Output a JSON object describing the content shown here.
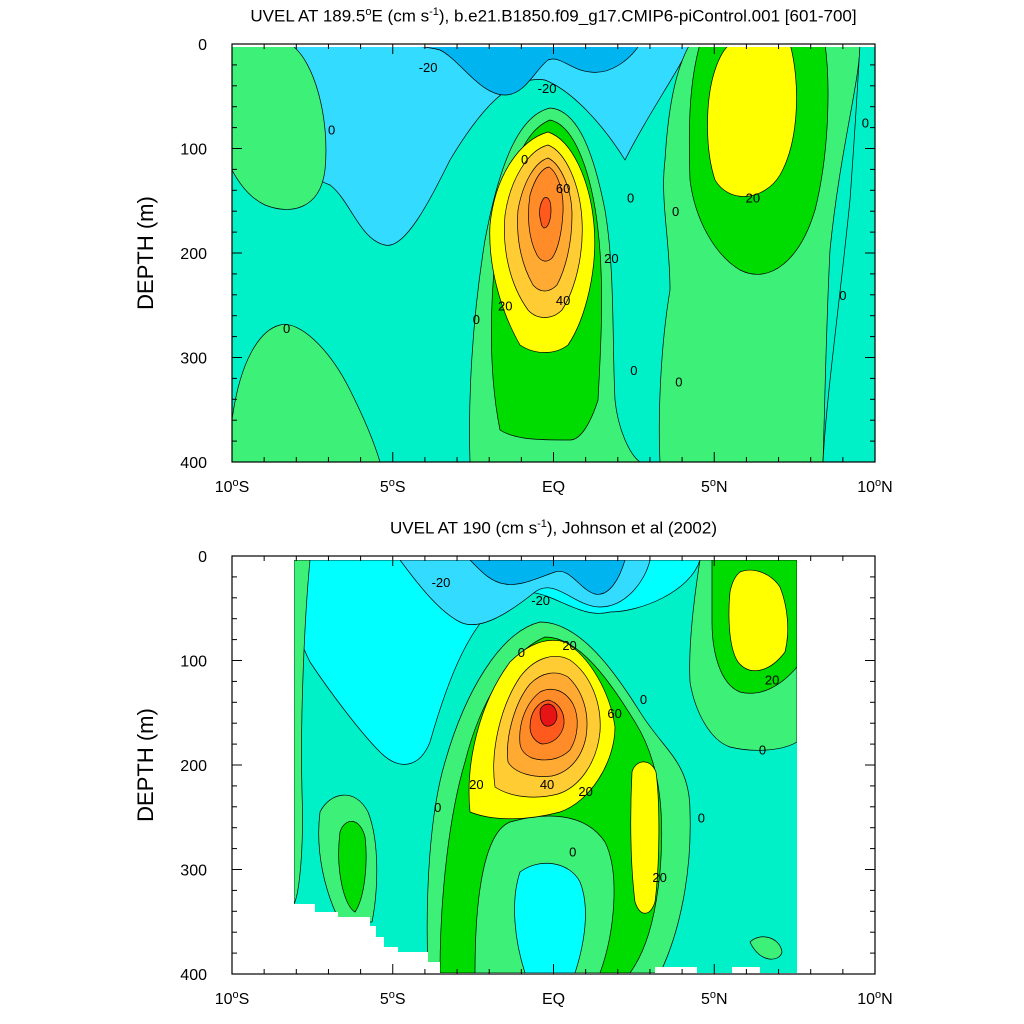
{
  "colors": {
    "c_m40": "#00b4f0",
    "c_m20": "#33dcff",
    "c_m10": "#00ffff",
    "c_m05": "#00f0c8",
    "c_p05": "#3cf078",
    "c_p10": "#00dc00",
    "c_p20": "#ffff00",
    "c_p30": "#ffcc33",
    "c_p40": "#ffaa33",
    "c_p50": "#ff8c28",
    "c_p60": "#ff5a1e",
    "c_p70": "#e61414"
  },
  "chart_data": [
    {
      "type": "heatmap",
      "title": "UVEL AT 189.5",
      "title_unit": "E (cm s",
      "title_rest": "), b.e21.B1850.f09_g17.CMIP6-piControl.001 [601-700]",
      "title_sup1": "o",
      "title_sup2": "-1",
      "ylabel": "DEPTH (m)",
      "xlabel": "",
      "xlim": [
        -10,
        10
      ],
      "ylim": [
        400,
        0
      ],
      "x_ticks": [
        {
          "value": -10,
          "label": "10",
          "sup": "o",
          "suffix": "S"
        },
        {
          "value": -5,
          "label": "5",
          "sup": "o",
          "suffix": "S"
        },
        {
          "value": 0,
          "label": "EQ",
          "sup": "",
          "suffix": ""
        },
        {
          "value": 5,
          "label": "5",
          "sup": "o",
          "suffix": "N"
        },
        {
          "value": 10,
          "label": "10",
          "sup": "o",
          "suffix": "N"
        }
      ],
      "y_ticks": [
        "0",
        "100",
        "200",
        "300",
        "400"
      ],
      "y_tick_values": [
        0,
        100,
        200,
        300,
        400
      ],
      "contour_labels": [
        {
          "text": "-20",
          "x": -3.9,
          "y": 22
        },
        {
          "text": "-20",
          "x": -0.2,
          "y": 42
        },
        {
          "text": "0",
          "x": -6.9,
          "y": 82
        },
        {
          "text": "0",
          "x": -0.9,
          "y": 110
        },
        {
          "text": "60",
          "x": 0.3,
          "y": 138
        },
        {
          "text": "0",
          "x": 2.4,
          "y": 147
        },
        {
          "text": "0",
          "x": 3.8,
          "y": 160
        },
        {
          "text": "20",
          "x": 6.2,
          "y": 147
        },
        {
          "text": "0",
          "x": 9.7,
          "y": 75
        },
        {
          "text": "20",
          "x": 1.8,
          "y": 205
        },
        {
          "text": "20",
          "x": -1.5,
          "y": 250
        },
        {
          "text": "40",
          "x": 0.3,
          "y": 245
        },
        {
          "text": "0",
          "x": -2.4,
          "y": 263
        },
        {
          "text": "0",
          "x": -8.3,
          "y": 272
        },
        {
          "text": "0",
          "x": 9.0,
          "y": 240
        },
        {
          "text": "0",
          "x": 2.5,
          "y": 312
        },
        {
          "text": "0",
          "x": 3.9,
          "y": 323
        }
      ]
    },
    {
      "type": "heatmap",
      "title": "UVEL AT 190 (cm s",
      "title_unit": "",
      "title_rest": "), Johnson et al (2002)",
      "title_sup1": "",
      "title_sup2": "-1",
      "ylabel": "DEPTH (m)",
      "xlabel": "",
      "xlim": [
        -10,
        10
      ],
      "ylim": [
        400,
        0
      ],
      "x_ticks": [
        {
          "value": -10,
          "label": "10",
          "sup": "o",
          "suffix": "S"
        },
        {
          "value": -5,
          "label": "5",
          "sup": "o",
          "suffix": "S"
        },
        {
          "value": 0,
          "label": "EQ",
          "sup": "",
          "suffix": ""
        },
        {
          "value": 5,
          "label": "5",
          "sup": "o",
          "suffix": "N"
        },
        {
          "value": 10,
          "label": "10",
          "sup": "o",
          "suffix": "N"
        }
      ],
      "y_ticks": [
        "0",
        "100",
        "200",
        "300",
        "400"
      ],
      "y_tick_values": [
        0,
        100,
        200,
        300,
        400
      ],
      "contour_labels": [
        {
          "text": "-20",
          "x": -3.5,
          "y": 25
        },
        {
          "text": "-20",
          "x": -0.4,
          "y": 42
        },
        {
          "text": "20",
          "x": 0.5,
          "y": 85
        },
        {
          "text": "0",
          "x": -1.0,
          "y": 92
        },
        {
          "text": "0",
          "x": 2.8,
          "y": 137
        },
        {
          "text": "60",
          "x": 1.9,
          "y": 150
        },
        {
          "text": "20",
          "x": 6.8,
          "y": 118
        },
        {
          "text": "0",
          "x": 6.5,
          "y": 185
        },
        {
          "text": "20",
          "x": -2.4,
          "y": 218
        },
        {
          "text": "40",
          "x": -0.2,
          "y": 218
        },
        {
          "text": "20",
          "x": 1.0,
          "y": 225
        },
        {
          "text": "0",
          "x": -3.6,
          "y": 240
        },
        {
          "text": "0",
          "x": 4.6,
          "y": 250
        },
        {
          "text": "0",
          "x": 0.6,
          "y": 283
        },
        {
          "text": "20",
          "x": 3.3,
          "y": 307
        }
      ]
    }
  ]
}
